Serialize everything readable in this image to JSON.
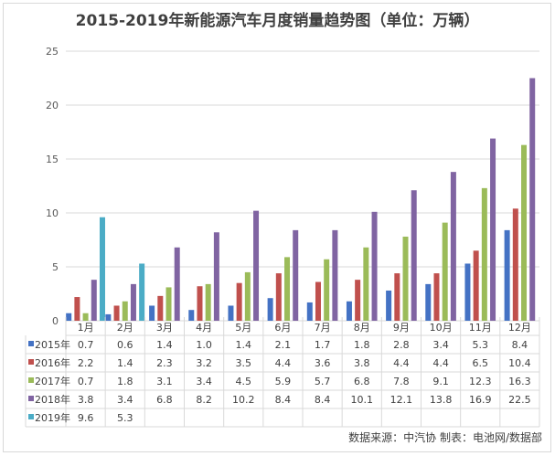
{
  "chart_data": {
    "type": "bar",
    "title": "2015-2019年新能源汽车月度销量趋势图（单位：万辆）",
    "categories": [
      "1月",
      "2月",
      "3月",
      "4月",
      "5月",
      "6月",
      "7月",
      "8月",
      "9月",
      "10月",
      "11月",
      "12月"
    ],
    "ylim": [
      0,
      25
    ],
    "yticks": [
      0,
      5,
      10,
      15,
      20,
      25
    ],
    "grid": true,
    "legend": "data-table",
    "series": [
      {
        "name": "2015年",
        "color": "#4472c4",
        "values": [
          0.7,
          0.6,
          1.4,
          1.0,
          1.4,
          2.1,
          1.7,
          1.8,
          2.8,
          3.4,
          5.3,
          8.4
        ]
      },
      {
        "name": "2016年",
        "color": "#c0504d",
        "values": [
          2.2,
          1.4,
          2.3,
          3.2,
          3.5,
          4.4,
          3.6,
          3.8,
          4.4,
          4.4,
          6.5,
          10.4
        ]
      },
      {
        "name": "2017年",
        "color": "#9bbb59",
        "values": [
          0.7,
          1.8,
          3.1,
          3.4,
          4.5,
          5.9,
          5.7,
          6.8,
          7.8,
          9.1,
          12.3,
          16.3
        ]
      },
      {
        "name": "2018年",
        "color": "#8064a2",
        "values": [
          3.8,
          3.4,
          6.8,
          8.2,
          10.2,
          8.4,
          8.4,
          10.1,
          12.1,
          13.8,
          16.9,
          22.5
        ]
      },
      {
        "name": "2019年",
        "color": "#4bacc6",
        "values": [
          9.6,
          5.3,
          null,
          null,
          null,
          null,
          null,
          null,
          null,
          null,
          null,
          null
        ]
      }
    ],
    "source": "数据来源：中汽协  制表：电池网/数据部"
  }
}
